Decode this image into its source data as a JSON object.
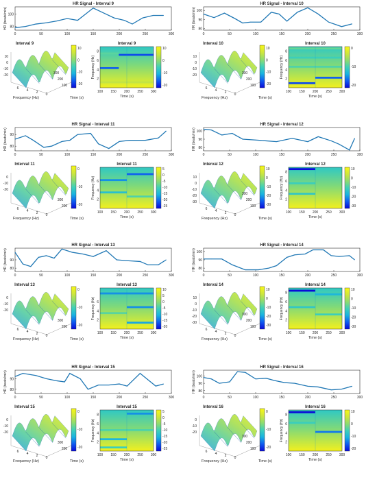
{
  "figure": {
    "background": "#ffffff",
    "line_color": "#1f77b4",
    "axis_color": "#262626"
  },
  "colorbar_stops": [
    "#0a0ad8",
    "#0f5bf0",
    "#19b3e0",
    "#3fd0b8",
    "#8fdc6e",
    "#cfe63c",
    "#f8f816"
  ],
  "chart_data": [
    {
      "type": "line",
      "panel": "hr",
      "title": "HR Signal - Interval 9",
      "ylabel": "HR (beats/min)",
      "yticks": [
        80,
        100
      ],
      "ylim": [
        74,
        112
      ],
      "xlim": [
        0,
        300
      ],
      "xticks": [
        0,
        50,
        100,
        150,
        200,
        250,
        300
      ],
      "x": [
        0,
        20,
        40,
        60,
        80,
        100,
        120,
        150,
        170,
        190,
        210,
        225,
        245,
        265,
        285
      ],
      "values": [
        78,
        80,
        84,
        86,
        89,
        93,
        90,
        110,
        102,
        94,
        90,
        84,
        94,
        98,
        98
      ]
    },
    {
      "type": "line",
      "panel": "hr",
      "title": "HR Signal - Interval 10",
      "ylabel": "HR (beats/min)",
      "yticks": [
        80,
        90,
        100
      ],
      "ylim": [
        78,
        104
      ],
      "xlim": [
        0,
        300
      ],
      "xticks": [
        0,
        50,
        100,
        150,
        200,
        250,
        300
      ],
      "x": [
        0,
        20,
        40,
        60,
        75,
        90,
        110,
        130,
        145,
        160,
        180,
        200,
        220,
        240,
        265,
        285
      ],
      "values": [
        96,
        92,
        97,
        91,
        86,
        87,
        87,
        98,
        96,
        88,
        98,
        103,
        96,
        87,
        82,
        85
      ]
    },
    {
      "type": "surface",
      "panel": "3d",
      "title": "Interval 9",
      "xlabel": "Frequency (Hz)",
      "ylabel": "Time (s)",
      "zticks": [
        10,
        0,
        -10,
        -20
      ],
      "xticks": [
        6,
        4,
        2,
        0
      ],
      "yticks": [
        100,
        200,
        300
      ]
    },
    {
      "type": "heatmap",
      "panel": "spec",
      "title": "Interval 9",
      "xlabel": "Time (s)",
      "ylabel": "Frequency (Hz)",
      "xticks": [
        100,
        150,
        200,
        250,
        300
      ],
      "yticks": [
        2,
        4,
        6,
        8
      ],
      "cbticks": [
        10,
        0,
        -10,
        -20
      ],
      "stripes": [
        {
          "f": 7.5,
          "x0": 100,
          "x1": 170,
          "v": -5
        },
        {
          "f": 7.2,
          "x0": 170,
          "x1": 300,
          "v": -24
        },
        {
          "f": 4.3,
          "x0": 100,
          "x1": 170,
          "v": -22
        },
        {
          "f": 1.2,
          "x0": 100,
          "x1": 300,
          "v": 6
        }
      ]
    },
    {
      "type": "surface",
      "panel": "3d",
      "title": "Interval 10",
      "xlabel": "Frequency (Hz)",
      "ylabel": "Time (s)",
      "zticks": [
        10,
        0,
        -10,
        -20
      ],
      "xticks": [
        6,
        4,
        2,
        0
      ],
      "yticks": [
        100,
        200,
        300
      ]
    },
    {
      "type": "heatmap",
      "panel": "spec",
      "title": "Interval 10",
      "xlabel": "Time (s)",
      "ylabel": "Frequency (Hz)",
      "xticks": [
        100,
        150,
        200,
        250,
        300
      ],
      "yticks": [
        2,
        4,
        6,
        8
      ],
      "cbticks": [
        0,
        -10,
        -20
      ],
      "stripes": [
        {
          "f": 8.6,
          "x0": 100,
          "x1": 300,
          "v": -4
        },
        {
          "f": 6.6,
          "x0": 100,
          "x1": 300,
          "v": -8
        },
        {
          "f": 4.6,
          "x0": 100,
          "x1": 300,
          "v": -6
        },
        {
          "f": 2.2,
          "x0": 200,
          "x1": 300,
          "v": -22
        },
        {
          "f": 1.0,
          "x0": 100,
          "x1": 200,
          "v": -24
        }
      ]
    },
    {
      "type": "line",
      "panel": "hr",
      "title": "HR Signal - Interval 11",
      "ylabel": "HR (beats/min)",
      "yticks": [
        80,
        90
      ],
      "ylim": [
        76,
        96
      ],
      "xlim": [
        0,
        300
      ],
      "xticks": [
        0,
        50,
        100,
        150,
        200,
        250,
        300
      ],
      "x": [
        0,
        20,
        35,
        55,
        70,
        90,
        105,
        120,
        145,
        160,
        180,
        200,
        220,
        250,
        275,
        290
      ],
      "values": [
        86,
        89,
        85,
        79,
        80,
        84,
        85,
        90,
        91,
        82,
        78,
        84,
        85,
        85,
        87,
        93
      ]
    },
    {
      "type": "line",
      "panel": "hr",
      "title": "HR Signal - Interval 12",
      "ylabel": "HR (beats/min)",
      "yticks": [
        80,
        90,
        100
      ],
      "ylim": [
        76,
        104
      ],
      "xlim": [
        0,
        300
      ],
      "xticks": [
        0,
        50,
        100,
        150,
        200,
        250,
        300
      ],
      "x": [
        0,
        15,
        35,
        55,
        75,
        100,
        120,
        140,
        170,
        200,
        220,
        245,
        260,
        280,
        290
      ],
      "values": [
        102,
        101,
        95,
        97,
        90,
        89,
        88,
        87,
        91,
        87,
        93,
        88,
        84,
        77,
        91
      ]
    },
    {
      "type": "surface",
      "panel": "3d",
      "title": "Interval 11",
      "xlabel": "Frequency (Hz)",
      "ylabel": "Time (s)",
      "zticks": [
        0,
        -10,
        -20
      ],
      "xticks": [
        6,
        4,
        2,
        0
      ],
      "yticks": [
        200,
        300
      ]
    },
    {
      "type": "heatmap",
      "panel": "spec",
      "title": "Interval 11",
      "xlabel": "Time (s)",
      "ylabel": "Frequency (Hz)",
      "xticks": [
        100,
        150,
        200,
        250,
        300
      ],
      "yticks": [
        2,
        4,
        6
      ],
      "cbticks": [
        5,
        0,
        -5,
        -10,
        -15,
        -20,
        -25
      ],
      "stripes": [
        {
          "f": 7.5,
          "x0": 200,
          "x1": 300,
          "v": -22
        },
        {
          "f": 6.2,
          "x0": 100,
          "x1": 200,
          "v": -18
        },
        {
          "f": 3.5,
          "x0": 100,
          "x1": 200,
          "v": -12
        },
        {
          "f": 2.6,
          "x0": 200,
          "x1": 300,
          "v": -6
        }
      ]
    },
    {
      "type": "surface",
      "panel": "3d",
      "title": "Interval 12",
      "xlabel": "Frequency (Hz)",
      "ylabel": "Time (s)",
      "zticks": [
        10,
        0,
        -10,
        -20,
        -30
      ],
      "xticks": [
        6,
        4,
        2,
        0
      ],
      "yticks": [
        100,
        200,
        300
      ]
    },
    {
      "type": "heatmap",
      "panel": "spec",
      "title": "Interval 12",
      "xlabel": "Time (s)",
      "ylabel": "Frequency (Hz)",
      "xticks": [
        100,
        150,
        200,
        250,
        300
      ],
      "yticks": [
        2,
        4,
        6,
        8
      ],
      "cbticks": [
        10,
        0,
        -10,
        -20,
        -30
      ],
      "stripes": [
        {
          "f": 8.6,
          "x0": 100,
          "x1": 200,
          "v": -32
        },
        {
          "f": 5.5,
          "x0": 100,
          "x1": 200,
          "v": -8
        },
        {
          "f": 3.2,
          "x0": 100,
          "x1": 200,
          "v": -10
        }
      ]
    },
    {
      "type": "line",
      "panel": "hr",
      "title": "HR Signal - Interval 13",
      "ylabel": "HR (beats/min)",
      "yticks": [
        80,
        90
      ],
      "ylim": [
        76,
        104
      ],
      "xlim": [
        0,
        300
      ],
      "xticks": [
        0,
        50,
        100,
        150,
        200,
        250,
        300
      ],
      "x": [
        0,
        15,
        30,
        45,
        60,
        75,
        90,
        110,
        130,
        150,
        175,
        195,
        215,
        240,
        255,
        275,
        290
      ],
      "values": [
        99,
        85,
        82,
        93,
        95,
        92,
        103,
        99,
        97,
        94,
        101,
        90,
        89,
        88,
        84,
        84,
        90
      ]
    },
    {
      "type": "line",
      "panel": "hr",
      "title": "HR Signal - Interval 14",
      "ylabel": "HR (beats/min)",
      "yticks": [
        80,
        90,
        100
      ],
      "ylim": [
        76,
        104
      ],
      "xlim": [
        0,
        300
      ],
      "xticks": [
        0,
        50,
        100,
        150,
        200,
        250,
        300
      ],
      "x": [
        0,
        15,
        35,
        55,
        80,
        105,
        125,
        140,
        160,
        175,
        195,
        210,
        230,
        245,
        260,
        280,
        290
      ],
      "values": [
        91,
        91,
        91,
        84,
        78,
        78,
        80,
        83,
        93,
        96,
        97,
        102,
        102,
        95,
        94,
        95,
        90
      ]
    },
    {
      "type": "surface",
      "panel": "3d",
      "title": "Interval 13",
      "xlabel": "Frequency (Hz)",
      "ylabel": "Time (s)",
      "zticks": [
        0,
        -10,
        -20
      ],
      "xticks": [
        6,
        4,
        2,
        0
      ],
      "yticks": [
        200,
        300
      ]
    },
    {
      "type": "heatmap",
      "panel": "spec",
      "title": "Interval 13",
      "xlabel": "Time (s)",
      "ylabel": "Frequency (Hz)",
      "xticks": [
        100,
        150,
        200,
        250,
        300
      ],
      "yticks": [
        2,
        4,
        6
      ],
      "cbticks": [
        10,
        5,
        0,
        -5,
        -10,
        -15,
        -20
      ],
      "stripes": [
        {
          "f": 7.8,
          "x0": 100,
          "x1": 300,
          "v": -18
        },
        {
          "f": 4.8,
          "x0": 200,
          "x1": 300,
          "v": -18
        },
        {
          "f": 3.5,
          "x0": 100,
          "x1": 200,
          "v": -5
        },
        {
          "f": 1.4,
          "x0": 200,
          "x1": 300,
          "v": -16
        }
      ]
    },
    {
      "type": "surface",
      "panel": "3d",
      "title": "Interval 14",
      "xlabel": "Frequency (Hz)",
      "ylabel": "Time (s)",
      "zticks": [
        10,
        0,
        -10,
        -20,
        -30
      ],
      "xticks": [
        6,
        4,
        2,
        0
      ],
      "yticks": [
        100,
        200,
        300
      ]
    },
    {
      "type": "heatmap",
      "panel": "spec",
      "title": "Interval 14",
      "xlabel": "Time (s)",
      "ylabel": "Frequency (Hz)",
      "xticks": [
        100,
        150,
        200,
        250,
        300
      ],
      "yticks": [
        2,
        4,
        6,
        8
      ],
      "cbticks": [
        10,
        0,
        -10,
        -20,
        -30
      ],
      "stripes": [
        {
          "f": 8.4,
          "x0": 100,
          "x1": 200,
          "v": -30
        },
        {
          "f": 7.6,
          "x0": 200,
          "x1": 300,
          "v": -14
        },
        {
          "f": 4.8,
          "x0": 100,
          "x1": 200,
          "v": -10
        },
        {
          "f": 3.2,
          "x0": 200,
          "x1": 300,
          "v": -8
        }
      ]
    },
    {
      "type": "line",
      "panel": "hr",
      "title": "HR Signal - Interval 15",
      "ylabel": "HR (beats/min)",
      "yticks": [
        80,
        90
      ],
      "ylim": [
        76,
        98
      ],
      "xlim": [
        0,
        300
      ],
      "xticks": [
        0,
        50,
        100,
        150,
        200,
        250,
        300
      ],
      "x": [
        0,
        15,
        40,
        60,
        80,
        95,
        105,
        125,
        140,
        160,
        180,
        200,
        215,
        240,
        270,
        285
      ],
      "values": [
        92,
        95,
        93,
        90,
        88,
        87,
        95,
        90,
        80,
        84,
        84,
        85,
        83,
        95,
        83,
        85
      ]
    },
    {
      "type": "line",
      "panel": "hr",
      "title": "HR Signal - Interval 16",
      "ylabel": "HR (beats/min)",
      "yticks": [
        80,
        90,
        100
      ],
      "ylim": [
        76,
        108
      ],
      "xlim": [
        0,
        300
      ],
      "xticks": [
        0,
        50,
        100,
        150,
        200,
        250,
        300
      ],
      "x": [
        0,
        15,
        30,
        50,
        65,
        80,
        100,
        120,
        135,
        155,
        175,
        200,
        220,
        245,
        265,
        285
      ],
      "values": [
        98,
        96,
        90,
        92,
        106,
        105,
        96,
        97,
        94,
        91,
        90,
        86,
        85,
        81,
        82,
        86
      ]
    },
    {
      "type": "surface",
      "panel": "3d",
      "title": "Interval 15",
      "xlabel": "Frequency (Hz)",
      "ylabel": "Time (s)",
      "zticks": [
        0,
        -10,
        -20
      ],
      "xticks": [
        6,
        4,
        2,
        0
      ],
      "yticks": [
        200,
        300
      ]
    },
    {
      "type": "heatmap",
      "panel": "spec",
      "title": "Interval 15",
      "xlabel": "Time (s)",
      "ylabel": "Frequency (Hz)",
      "xticks": [
        100,
        150,
        200,
        250,
        300
      ],
      "yticks": [
        2,
        4,
        6,
        8
      ],
      "cbticks": [
        5,
        0,
        -5,
        -10,
        -15,
        -20,
        -25
      ],
      "stripes": [
        {
          "f": 8.2,
          "x0": 200,
          "x1": 300,
          "v": -18
        },
        {
          "f": 4.6,
          "x0": 100,
          "x1": 300,
          "v": -6
        },
        {
          "f": 2.6,
          "x0": 100,
          "x1": 200,
          "v": -14
        },
        {
          "f": 0.8,
          "x0": 100,
          "x1": 200,
          "v": -8
        }
      ]
    },
    {
      "type": "surface",
      "panel": "3d",
      "title": "Interval 16",
      "xlabel": "Frequency (Hz)",
      "ylabel": "Time (s)",
      "zticks": [
        0,
        -10,
        -20
      ],
      "xticks": [
        6,
        4,
        2,
        0
      ],
      "yticks": [
        100,
        200,
        300
      ]
    },
    {
      "type": "heatmap",
      "panel": "spec",
      "title": "Interval 16",
      "xlabel": "Time (s)",
      "ylabel": "Frequency (Hz)",
      "xticks": [
        100,
        150,
        200,
        250,
        300
      ],
      "yticks": [
        2,
        4,
        6,
        8
      ],
      "cbticks": [
        10,
        0,
        -10,
        -20
      ],
      "stripes": [
        {
          "f": 8.5,
          "x0": 100,
          "x1": 200,
          "v": -30
        },
        {
          "f": 4.2,
          "x0": 200,
          "x1": 300,
          "v": -20
        },
        {
          "f": 6.2,
          "x0": 100,
          "x1": 200,
          "v": -8
        }
      ]
    }
  ]
}
